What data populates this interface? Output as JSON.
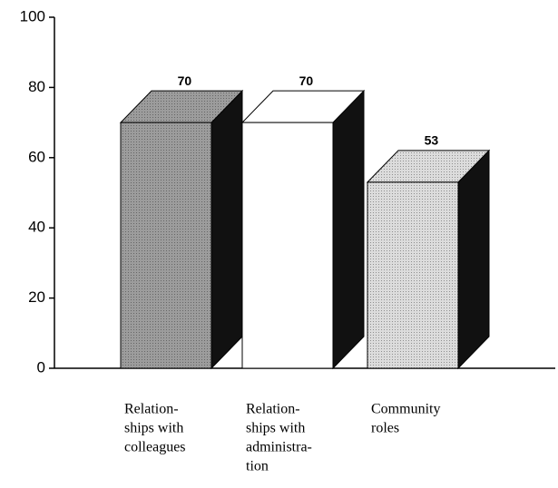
{
  "chart_data": {
    "type": "bar3d",
    "categories": [
      [
        "Relation-",
        "ships with",
        "colleagues"
      ],
      [
        "Relation-",
        "ships with",
        "administra-",
        "tion"
      ],
      [
        "Community",
        "roles"
      ]
    ],
    "values": [
      70,
      70,
      53
    ],
    "colors": [
      "#9c9c9c",
      "#ffffff",
      "#dcdcdc"
    ],
    "side_color": "#111111",
    "ylim": [
      0,
      100
    ],
    "yticks": [
      0,
      20,
      40,
      60,
      80,
      100
    ]
  }
}
